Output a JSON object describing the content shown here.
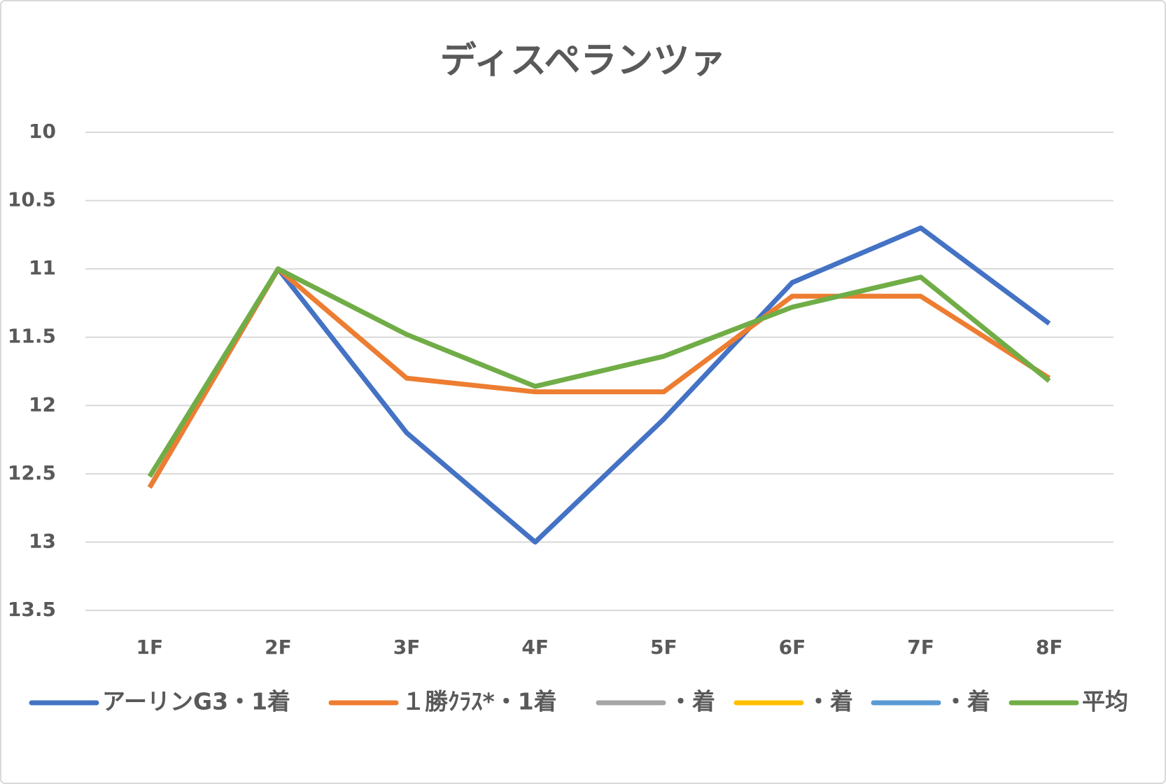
{
  "chart_data": {
    "type": "line",
    "title": "ディスペランツァ",
    "categories": [
      "1F",
      "2F",
      "3F",
      "4F",
      "5F",
      "6F",
      "7F",
      "8F"
    ],
    "series": [
      {
        "name": "アーリンG3・1着",
        "color": "#4472c4",
        "values": [
          12.6,
          11.0,
          12.2,
          13.0,
          12.1,
          11.1,
          10.7,
          11.4
        ]
      },
      {
        "name": "１勝ｸﾗｽ*・1着",
        "color": "#ed7d31",
        "values": [
          12.6,
          11.0,
          11.8,
          11.9,
          11.9,
          11.2,
          11.2,
          11.8
        ]
      },
      {
        "name": "・着",
        "color": "#a5a5a5",
        "values": [
          null,
          null,
          null,
          null,
          null,
          null,
          null,
          null
        ]
      },
      {
        "name": "・着",
        "color": "#ffc000",
        "values": [
          null,
          null,
          null,
          null,
          null,
          null,
          null,
          null
        ]
      },
      {
        "name": "・着",
        "color": "#5b9bd5",
        "values": [
          null,
          null,
          null,
          null,
          null,
          null,
          null,
          null
        ]
      },
      {
        "name": "平均",
        "color": "#70ad47",
        "values": [
          12.52,
          11.0,
          11.48,
          11.86,
          11.64,
          11.28,
          11.06,
          11.82
        ]
      }
    ],
    "ylim": [
      10,
      13.5
    ],
    "y_reversed": true,
    "yticks": [
      10,
      10.5,
      11,
      11.5,
      12,
      12.5,
      13,
      13.5
    ],
    "grid": true,
    "legend": "bottom"
  }
}
